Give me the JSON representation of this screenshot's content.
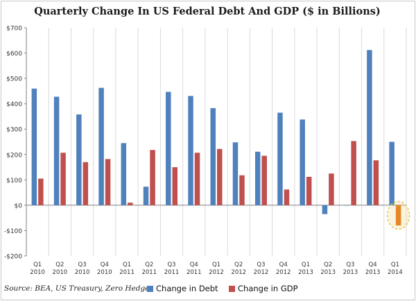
{
  "colors": {
    "debt": "#4f81bd",
    "gdp": "#c0504d",
    "highlight_gdp": "#e36c0a",
    "highlight_circle": "#e6c24a",
    "grid": "#d9d9d9",
    "axis": "#7f7f7f"
  },
  "footer": {
    "source": "Source: BEA, US Treasury, Zero Hedge"
  },
  "chart_data": {
    "type": "bar",
    "title": "Quarterly Change In US Federal Debt And GDP ($ in Billions)",
    "xlabel": "",
    "ylabel": "",
    "ylim": [
      -200,
      700
    ],
    "y_ticks": [
      -200,
      -100,
      0,
      100,
      200,
      300,
      400,
      500,
      600,
      700
    ],
    "y_tick_labels": [
      "-$200",
      "-$100",
      "$0",
      "$100",
      "$200",
      "$300",
      "$400",
      "$500",
      "$600",
      "$700"
    ],
    "grid": "vertical",
    "legend_position": "bottom",
    "categories": [
      {
        "q": "Q1",
        "y": "2010"
      },
      {
        "q": "Q2",
        "y": "2010"
      },
      {
        "q": "Q3",
        "y": "2010"
      },
      {
        "q": "Q4",
        "y": "2010"
      },
      {
        "q": "Q1",
        "y": "2011"
      },
      {
        "q": "Q2",
        "y": "2011"
      },
      {
        "q": "Q3",
        "y": "2011"
      },
      {
        "q": "Q4",
        "y": "2011"
      },
      {
        "q": "Q1",
        "y": "2012"
      },
      {
        "q": "Q2",
        "y": "2012"
      },
      {
        "q": "Q3",
        "y": "2012"
      },
      {
        "q": "Q4",
        "y": "2012"
      },
      {
        "q": "Q1",
        "y": "2013"
      },
      {
        "q": "Q2",
        "y": "2013"
      },
      {
        "q": "Q3",
        "y": "2013"
      },
      {
        "q": "Q4",
        "y": "2013"
      },
      {
        "q": "Q1",
        "y": "2014"
      }
    ],
    "series": [
      {
        "name": "Change in Debt",
        "values": [
          460,
          428,
          358,
          463,
          245,
          73,
          447,
          431,
          383,
          248,
          211,
          365,
          338,
          -35,
          0,
          612,
          250
        ]
      },
      {
        "name": "Change in GDP",
        "values": [
          105,
          207,
          170,
          182,
          10,
          218,
          150,
          207,
          222,
          118,
          195,
          62,
          112,
          125,
          253,
          177,
          -80
        ]
      }
    ],
    "annotations": [
      {
        "type": "dashed-circle",
        "category_index": 16,
        "series": "Change in GDP"
      }
    ]
  }
}
